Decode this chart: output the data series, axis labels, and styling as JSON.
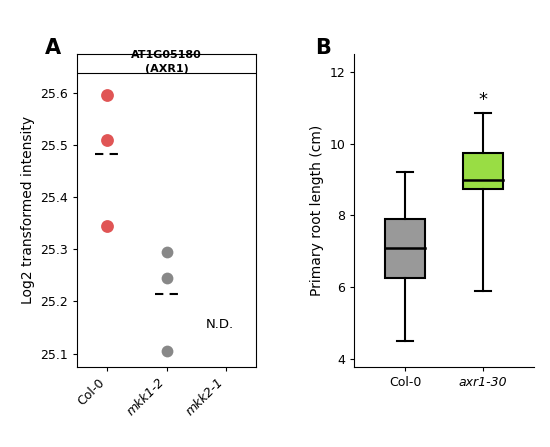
{
  "panel_A": {
    "title_line1": "AT1G05180",
    "title_line2": "(AXR1)",
    "ylabel": "Log2 transformed intensity",
    "categories": [
      "Col-0",
      "mkk1-2",
      "mkk2-1"
    ],
    "col0_points": [
      25.595,
      25.51,
      25.345
    ],
    "mkk12_points": [
      25.295,
      25.245,
      25.105
    ],
    "mkk21_points": [],
    "col0_mean": 25.483,
    "mkk12_mean": 25.215,
    "col0_color": "#e05555",
    "mkk12_color": "#888888",
    "nd_text": "N.D.",
    "ylim": [
      25.075,
      25.675
    ],
    "yticks": [
      25.1,
      25.2,
      25.3,
      25.4,
      25.5,
      25.6
    ]
  },
  "panel_B": {
    "ylabel": "Primary root length (cm)",
    "col0_box": {
      "q1": 6.25,
      "median": 7.1,
      "q3": 7.9,
      "whisker_low": 4.5,
      "whisker_high": 9.2,
      "color": "#999999"
    },
    "axr130_box": {
      "q1": 8.75,
      "median": 9.0,
      "q3": 9.75,
      "whisker_low": 5.9,
      "whisker_high": 10.85,
      "color": "#99dd44"
    },
    "ylim": [
      3.8,
      12.5
    ],
    "yticks": [
      4,
      6,
      8,
      10,
      12
    ],
    "star_text": "*",
    "axr1_label": "axr1-30"
  },
  "label_fontsize": 10,
  "tick_fontsize": 9,
  "panel_label_fontsize": 15
}
